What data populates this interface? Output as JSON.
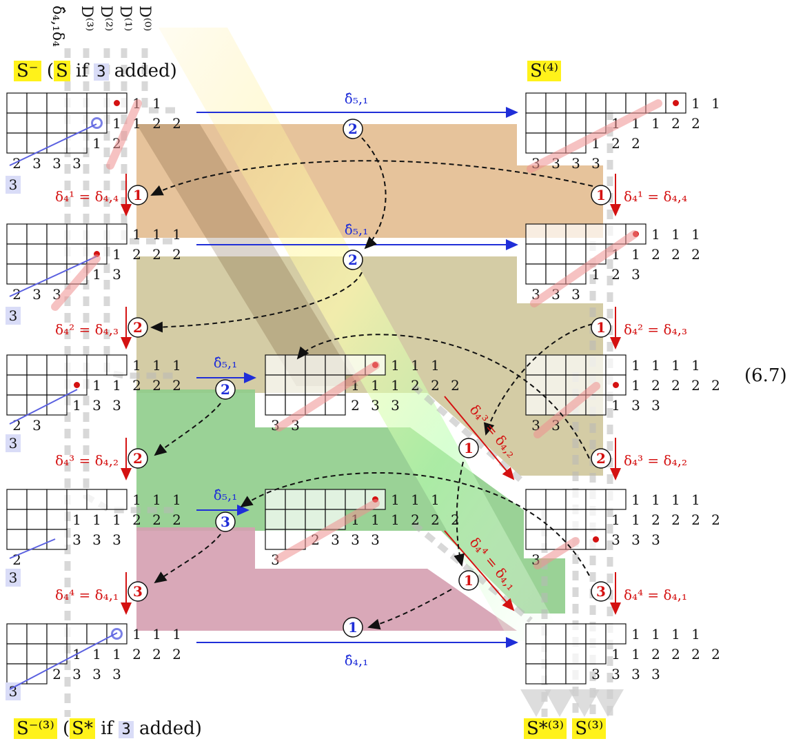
{
  "column_labels": [
    "δ̂₄,₁δ₄",
    "D⁽³⁾",
    "D⁽²⁾",
    "D⁽¹⁾",
    "D⁽⁰⁾"
  ],
  "headers": {
    "top_left": {
      "main": "S⁻",
      "paren_open": "(",
      "s_label": "S",
      "if_text": "if",
      "added_num": "3",
      "added_text": "added)"
    },
    "top_right": "S⁽⁴⁾",
    "bottom_left": {
      "main": "S⁻⁽³⁾",
      "paren_open": "(",
      "s_label": "S*",
      "if_text": "if",
      "added_num": "3",
      "added_text": "added)"
    },
    "bottom_right": [
      "S*⁽³⁾",
      "S⁽³⁾"
    ]
  },
  "equation_number": "(6.7)",
  "red_arrow_labels": [
    "δ₄¹ = δ₄,₄",
    "δ₄² = δ₄,₃",
    "δ₄³ = δ₄,₂",
    "δ₄⁴ = δ₄,₁"
  ],
  "right_red_labels": [
    "δ₄¹ = δ₄,₄",
    "δ₄² = δ₄,₃",
    "δ₄³ = δ₄,₂",
    "δ₄⁴ = δ₄,₁"
  ],
  "diag_labels": [
    "δ₄³ = δ₄,₂",
    "δ₄⁴ = δ₄,₁"
  ],
  "blue_arrow_labels": [
    "δ̂₅,₁",
    "δ̂₅,₁",
    "δ̂₅,₁",
    "δ̂₅,₁",
    "δ̂₄,₁"
  ],
  "circle_labels": {
    "blue": [
      "2",
      "2",
      "2",
      "3",
      "1"
    ],
    "red_left": [
      "1",
      "2",
      "2",
      "3"
    ],
    "red_right": [
      "1",
      "1",
      "2",
      "3"
    ],
    "red_diag": [
      "1",
      "1"
    ]
  },
  "side_box_label": "3",
  "tableaux": {
    "left": [
      {
        "rows": [
          [
            "",
            "",
            "",
            "",
            "",
            "•",
            "1",
            "1"
          ],
          [
            "",
            "",
            "",
            "",
            "○",
            "1",
            "1",
            "2",
            "2"
          ],
          [
            "",
            "",
            "",
            "",
            "1",
            "2"
          ],
          [
            "2",
            "3",
            "3",
            "3"
          ]
        ]
      },
      {
        "rows": [
          [
            "",
            "",
            "",
            "",
            "",
            "",
            "1",
            "1",
            "1"
          ],
          [
            "",
            "",
            "",
            "",
            "•",
            "1",
            "2",
            "2",
            "2"
          ],
          [
            "",
            "",
            "",
            "",
            "1",
            "3"
          ],
          [
            "2",
            "3",
            "3"
          ]
        ]
      },
      {
        "rows": [
          [
            "",
            "",
            "",
            "",
            "",
            "",
            "1",
            "1",
            "1"
          ],
          [
            "",
            "",
            "",
            "•",
            "1",
            "1",
            "2",
            "2",
            "2"
          ],
          [
            "",
            "",
            "",
            "1",
            "3",
            "3"
          ],
          [
            "2",
            "3"
          ]
        ]
      },
      {
        "rows": [
          [
            "",
            "",
            "",
            "",
            "",
            "",
            "1",
            "1",
            "1"
          ],
          [
            "",
            "",
            "",
            "1",
            "1",
            "1",
            "2",
            "2",
            "2"
          ],
          [
            "",
            "",
            "",
            "3",
            "3",
            "3"
          ],
          [
            "2"
          ]
        ]
      },
      {
        "rows": [
          [
            "",
            "",
            "",
            "",
            "",
            "○",
            "1",
            "1",
            "1"
          ],
          [
            "",
            "",
            "",
            "1",
            "1",
            "1",
            "2",
            "2",
            "2"
          ],
          [
            "",
            "",
            "2",
            "3",
            "3",
            "3"
          ],
          [
            "3"
          ]
        ]
      }
    ],
    "right": [
      {
        "rows": [
          [
            "",
            "",
            "",
            "",
            "",
            "",
            "",
            "•",
            "1",
            "1"
          ],
          [
            "",
            "",
            "",
            "",
            "1",
            "1",
            "1",
            "2",
            "2"
          ],
          [
            "",
            "",
            "",
            "1",
            "2",
            "2"
          ],
          [
            "3",
            "3",
            "3",
            "3"
          ]
        ]
      },
      {
        "rows": [
          [
            "",
            "",
            "",
            "",
            "",
            "•",
            "1",
            "1",
            "1"
          ],
          [
            "",
            "",
            "",
            "",
            "1",
            "1",
            "2",
            "2",
            "2"
          ],
          [
            "",
            "",
            "",
            "1",
            "2",
            "3"
          ],
          [
            "3",
            "3",
            "3"
          ]
        ]
      },
      {
        "rows": [
          [
            "",
            "",
            "",
            "",
            "",
            "1",
            "1",
            "1",
            "1"
          ],
          [
            "",
            "",
            "",
            "",
            "•",
            "1",
            "2",
            "2",
            "2",
            "2"
          ],
          [
            "",
            "",
            "",
            "",
            "1",
            "3",
            "3"
          ],
          [
            "3",
            "3"
          ]
        ]
      },
      {
        "rows": [
          [
            "",
            "",
            "",
            "",
            "",
            "1",
            "1",
            "1",
            "1"
          ],
          [
            "",
            "",
            "",
            "",
            "1",
            "1",
            "2",
            "2",
            "2",
            "2"
          ],
          [
            "",
            "",
            "",
            "•",
            "3",
            "3",
            "3"
          ],
          [
            "3"
          ]
        ]
      },
      {
        "rows": [
          [
            "",
            "",
            "",
            "",
            "",
            "1",
            "1",
            "1",
            "1"
          ],
          [
            "",
            "",
            "",
            "",
            "1",
            "1",
            "2",
            "2",
            "2",
            "2"
          ],
          [
            "",
            "",
            "",
            "3",
            "3",
            "3",
            "3"
          ]
        ]
      }
    ],
    "middle": [
      {
        "rows": [
          [
            "",
            "",
            "",
            "",
            "",
            "•",
            "1",
            "1",
            "1"
          ],
          [
            "",
            "",
            "",
            "",
            "1",
            "1",
            "1",
            "2",
            "2",
            "2"
          ],
          [
            "",
            "",
            "",
            "",
            "2",
            "3",
            "3"
          ],
          [
            "3",
            "3"
          ]
        ]
      },
      {
        "rows": [
          [
            "",
            "",
            "",
            "",
            "",
            "•",
            "1",
            "1",
            "1"
          ],
          [
            "",
            "",
            "",
            "",
            "1",
            "1",
            "1",
            "2",
            "2",
            "2"
          ],
          [
            "",
            "",
            "2",
            "3",
            "3",
            "3"
          ],
          [
            "3"
          ]
        ]
      }
    ]
  },
  "colors": {
    "blue": "#1f2ed8",
    "red": "#d41111",
    "band_orange": "#e2b989",
    "band_olive": "#cfc79b",
    "band_green": "#8fcd8b",
    "band_pink": "#d59eb0",
    "highlight": "#fff21a"
  }
}
